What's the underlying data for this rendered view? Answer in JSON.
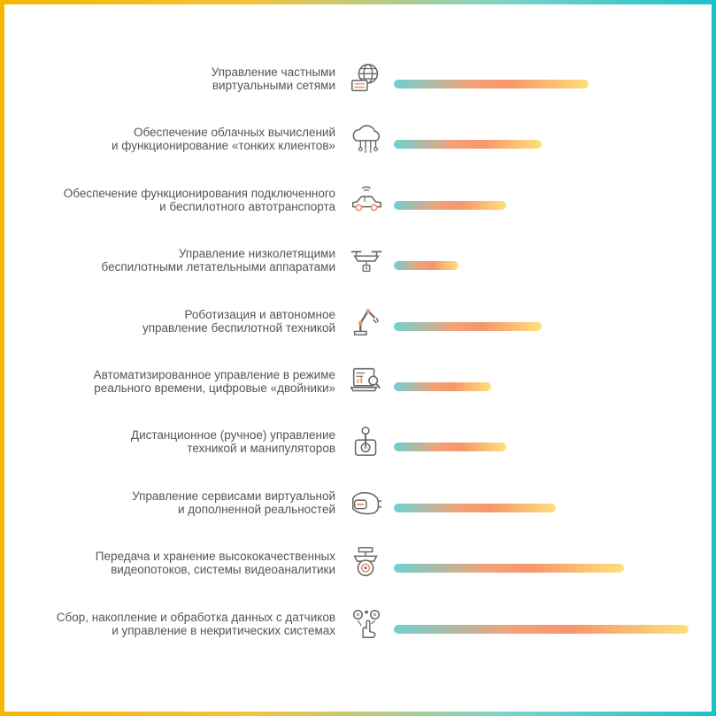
{
  "chart_data": {
    "type": "bar",
    "orientation": "horizontal",
    "gradient_colors": [
      "#6fd0d0",
      "#f7966b",
      "#fde07a"
    ],
    "border_colors": [
      "#f5b700",
      "#19c2c9"
    ],
    "categories": [
      {
        "lines": [
          "Управление частными",
          "виртуальными сетями"
        ],
        "icon": "globe-network-icon",
        "value": 0.66
      },
      {
        "lines": [
          "Обеспечение облачных вычислений",
          "и функционирование «тонких клиентов»"
        ],
        "icon": "cloud-computing-icon",
        "value": 0.5
      },
      {
        "lines": [
          "Обеспечение функционирования подключенного",
          "и беспилотного  автотранспорта"
        ],
        "icon": "connected-car-icon",
        "value": 0.38
      },
      {
        "lines": [
          "Управление низколетящими",
          "беспилотными летательными аппаратами"
        ],
        "icon": "drone-icon",
        "value": 0.22
      },
      {
        "lines": [
          "Роботизация и автономное",
          "управление беспилотной техникой"
        ],
        "icon": "robot-arm-icon",
        "value": 0.5
      },
      {
        "lines": [
          "Автоматизированное управление в режиме",
          "реального времени, цифровые «двойники»"
        ],
        "icon": "laptop-analytics-icon",
        "value": 0.33
      },
      {
        "lines": [
          "Дистанционное (ручное) управление",
          "техникой и манипуляторов"
        ],
        "icon": "joystick-icon",
        "value": 0.38
      },
      {
        "lines": [
          "Управление сервисами виртуальной",
          "и дополненной реальностей"
        ],
        "icon": "vr-headset-icon",
        "value": 0.55
      },
      {
        "lines": [
          "Передача и хранение высококачественных",
          "видеопотоков, системы видеоаналитики"
        ],
        "icon": "security-camera-icon",
        "value": 0.78
      },
      {
        "lines": [
          "Сбор, накопление и обработка данных с датчиков",
          "и управление в некритических системах"
        ],
        "icon": "sensors-gears-icon",
        "value": 1.0
      }
    ]
  }
}
